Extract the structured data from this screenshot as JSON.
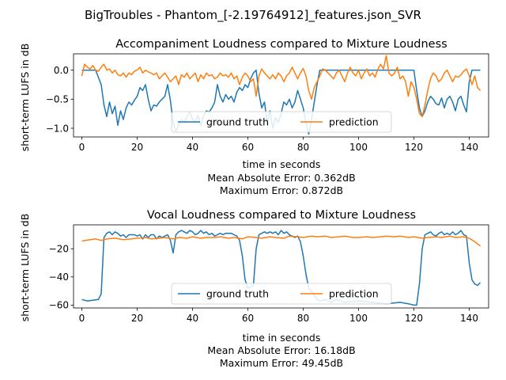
{
  "suptitle": "BigTroubles - Phantom_[-2.19764912]_features.json_SVR",
  "colors": {
    "ground_truth": "#1f77b4",
    "prediction": "#ff7f0e",
    "axis": "#000000"
  },
  "chart_data": [
    {
      "type": "line",
      "title": "Accompaniment Loudness compared to Mixture Loudness",
      "xlabel": "time in seconds",
      "ylabel": "short-term LUFS in dB",
      "xlim": [
        -3,
        147
      ],
      "ylim": [
        -1.15,
        0.28
      ],
      "xticks": [
        0,
        20,
        40,
        60,
        80,
        100,
        120,
        140
      ],
      "yticks": [
        0.0,
        -0.5,
        -1.0
      ],
      "ytick_labels": [
        "0.0",
        "−0.5",
        "−1.0"
      ],
      "legend": {
        "position": "lower-center",
        "columns": 2,
        "entries": [
          "ground truth",
          "prediction"
        ]
      },
      "stats": [
        "Mean Absolute Error: 0.362dB",
        "Maximum Error: 0.872dB"
      ],
      "series": [
        {
          "name": "ground truth",
          "x": [
            0,
            5,
            7,
            8,
            9,
            10,
            11,
            12,
            13,
            14,
            15,
            16,
            17,
            18,
            19,
            20,
            21,
            22,
            23,
            24,
            25,
            26,
            27,
            28,
            29,
            30,
            31,
            32,
            33,
            34,
            35,
            36,
            37,
            38,
            39,
            40,
            41,
            42,
            43,
            44,
            45,
            46,
            47,
            48,
            49,
            50,
            51,
            52,
            53,
            54,
            55,
            56,
            57,
            58,
            59,
            60,
            61,
            62,
            63,
            64,
            65,
            66,
            67,
            68,
            69,
            70,
            71,
            72,
            73,
            74,
            75,
            76,
            77,
            78,
            79,
            80,
            81,
            82,
            83,
            84,
            85,
            86,
            120,
            121,
            122,
            123,
            124,
            125,
            126,
            127,
            128,
            129,
            130,
            131,
            132,
            133,
            134,
            135,
            136,
            137,
            138,
            139,
            140,
            141,
            144
          ],
          "y": [
            0.0,
            0.0,
            -0.25,
            -0.6,
            -0.8,
            -0.55,
            -0.75,
            -0.62,
            -0.95,
            -0.7,
            -0.85,
            -0.65,
            -0.55,
            -0.6,
            -0.52,
            -0.45,
            -0.3,
            -0.35,
            -0.25,
            -0.5,
            -0.7,
            -0.6,
            -0.62,
            -0.55,
            -0.5,
            -0.45,
            -0.25,
            -0.52,
            -0.9,
            -1.05,
            -0.95,
            -0.85,
            -0.9,
            -0.8,
            -0.72,
            -0.85,
            -0.9,
            -0.78,
            -0.95,
            -0.78,
            -0.7,
            -0.72,
            -0.65,
            -0.55,
            -0.25,
            -0.45,
            -0.55,
            -0.42,
            -0.5,
            -0.45,
            -0.55,
            -0.38,
            -0.3,
            -0.35,
            -0.25,
            -0.3,
            -0.15,
            -0.05,
            0.0,
            -0.4,
            -0.65,
            -0.55,
            -0.9,
            -0.7,
            -1.0,
            -0.82,
            -0.9,
            -0.75,
            -0.55,
            -0.6,
            -0.5,
            -0.65,
            -0.55,
            -0.35,
            -0.5,
            -0.65,
            -0.9,
            -1.1,
            -0.85,
            -0.55,
            -0.25,
            0.0,
            0.0,
            -0.35,
            -0.65,
            -0.8,
            -0.7,
            -0.55,
            -0.45,
            -0.5,
            -0.58,
            -0.6,
            -0.48,
            -0.65,
            -0.5,
            -0.45,
            -0.55,
            -0.7,
            -0.5,
            -0.45,
            -0.6,
            -0.72,
            -0.2,
            0.0,
            0.0
          ]
        },
        {
          "name": "prediction",
          "x": [
            0,
            1,
            2,
            3,
            4,
            5,
            6,
            7,
            8,
            9,
            10,
            11,
            12,
            13,
            14,
            15,
            16,
            17,
            18,
            19,
            20,
            21,
            22,
            23,
            24,
            25,
            26,
            27,
            28,
            29,
            30,
            31,
            32,
            33,
            34,
            35,
            36,
            37,
            38,
            39,
            40,
            41,
            42,
            43,
            44,
            45,
            46,
            47,
            48,
            49,
            50,
            51,
            52,
            53,
            54,
            55,
            56,
            57,
            58,
            59,
            60,
            61,
            62,
            63,
            64,
            65,
            66,
            67,
            68,
            69,
            70,
            71,
            72,
            73,
            74,
            75,
            76,
            77,
            78,
            79,
            80,
            81,
            82,
            83,
            84,
            85,
            86,
            87,
            88,
            89,
            90,
            91,
            92,
            93,
            94,
            95,
            96,
            97,
            98,
            99,
            100,
            101,
            102,
            103,
            104,
            105,
            106,
            107,
            108,
            109,
            110,
            111,
            112,
            113,
            114,
            115,
            116,
            117,
            118,
            119,
            120,
            121,
            122,
            123,
            124,
            125,
            126,
            127,
            128,
            129,
            130,
            131,
            132,
            133,
            134,
            135,
            136,
            137,
            138,
            139,
            140,
            141,
            142,
            143,
            144
          ],
          "y": [
            -0.1,
            0.1,
            0.05,
            0.02,
            0.08,
            0.0,
            -0.02,
            0.05,
            0.1,
            0.0,
            0.02,
            -0.05,
            0.0,
            -0.08,
            -0.1,
            -0.05,
            -0.12,
            -0.05,
            -0.08,
            -0.02,
            0.0,
            0.05,
            -0.05,
            0.0,
            -0.03,
            -0.05,
            -0.08,
            -0.05,
            -0.15,
            -0.1,
            -0.05,
            -0.12,
            -0.2,
            -0.15,
            -0.1,
            -0.25,
            -0.08,
            -0.12,
            -0.05,
            -0.15,
            -0.1,
            -0.05,
            -0.2,
            -0.08,
            -0.15,
            -0.05,
            -0.1,
            -0.08,
            -0.15,
            -0.12,
            -0.05,
            -0.1,
            -0.08,
            -0.12,
            -0.05,
            -0.15,
            -0.1,
            -0.25,
            -0.12,
            -0.05,
            -0.1,
            -0.2,
            -0.15,
            -0.45,
            -0.1,
            0.02,
            -0.05,
            -0.1,
            -0.15,
            -0.08,
            -0.15,
            -0.05,
            -0.1,
            -0.2,
            -0.1,
            -0.05,
            0.05,
            -0.05,
            -0.15,
            -0.05,
            0.03,
            -0.1,
            -0.35,
            -0.5,
            -0.3,
            -0.2,
            -0.1,
            0.02,
            0.0,
            -0.05,
            -0.1,
            -0.15,
            -0.05,
            0.0,
            -0.1,
            -0.2,
            -0.05,
            0.05,
            -0.05,
            -0.1,
            0.0,
            -0.15,
            -0.05,
            0.02,
            -0.1,
            -0.05,
            -0.12,
            0.02,
            0.1,
            0.02,
            0.25,
            -0.05,
            -0.1,
            -0.05,
            0.05,
            -0.15,
            -0.1,
            -0.2,
            -0.45,
            -0.2,
            -0.3,
            -0.5,
            -0.75,
            -0.8,
            -0.6,
            -0.35,
            -0.15,
            -0.05,
            -0.1,
            -0.2,
            -0.15,
            -0.05,
            0.0,
            -0.1,
            -0.2,
            -0.1,
            -0.12,
            -0.08,
            -0.02,
            0.02,
            -0.1,
            -0.25,
            -0.1,
            -0.3,
            -0.35
          ]
        }
      ]
    },
    {
      "type": "line",
      "title": "Vocal Loudness compared to Mixture Loudness",
      "xlabel": "time in seconds",
      "ylabel": "short-term LUFS in dB",
      "xlim": [
        -3,
        147
      ],
      "ylim": [
        -62,
        -3
      ],
      "xticks": [
        0,
        20,
        40,
        60,
        80,
        100,
        120,
        140
      ],
      "yticks": [
        -20,
        -40,
        -60
      ],
      "ytick_labels": [
        "−20",
        "−40",
        "−60"
      ],
      "legend": {
        "position": "lower-center",
        "columns": 2,
        "entries": [
          "ground truth",
          "prediction"
        ]
      },
      "stats": [
        "Mean Absolute Error: 16.18dB",
        "Maximum Error: 49.45dB"
      ],
      "series": [
        {
          "name": "ground truth",
          "x": [
            0,
            2,
            4,
            6,
            7,
            8,
            9,
            10,
            11,
            12,
            13,
            14,
            15,
            16,
            17,
            18,
            19,
            20,
            21,
            22,
            23,
            24,
            25,
            26,
            27,
            28,
            29,
            30,
            31,
            32,
            33,
            34,
            35,
            36,
            37,
            38,
            39,
            40,
            41,
            42,
            43,
            44,
            45,
            46,
            47,
            48,
            49,
            50,
            51,
            52,
            53,
            54,
            55,
            56,
            57,
            58,
            59,
            60,
            61,
            62,
            63,
            64,
            65,
            66,
            67,
            68,
            69,
            70,
            71,
            72,
            73,
            74,
            75,
            76,
            77,
            78,
            79,
            80,
            81,
            82,
            83,
            84,
            85,
            86,
            88,
            90,
            92,
            95,
            100,
            105,
            110,
            115,
            118,
            120,
            121,
            122,
            123,
            124,
            125,
            126,
            127,
            128,
            129,
            130,
            131,
            132,
            133,
            134,
            135,
            136,
            137,
            138,
            139,
            140,
            141,
            142,
            143,
            144
          ],
          "y": [
            -56,
            -57,
            -56.5,
            -56,
            -52,
            -12,
            -9,
            -8,
            -10,
            -8,
            -9,
            -11,
            -10,
            -12,
            -10,
            -10,
            -10,
            -11,
            -10,
            -13,
            -10,
            -12,
            -10,
            -10,
            -13,
            -11,
            -12,
            -11,
            -10,
            -14,
            -23,
            -10,
            -8,
            -7,
            -8,
            -9,
            -7,
            -8,
            -10,
            -9,
            -7,
            -9,
            -8,
            -10,
            -9,
            -11,
            -10,
            -9,
            -10,
            -9,
            -9,
            -9,
            -10,
            -11,
            -14,
            -25,
            -42,
            -48,
            -47,
            -46,
            -20,
            -10,
            -9,
            -8,
            -9,
            -8,
            -9,
            -8,
            -10,
            -7,
            -9,
            -8,
            -10,
            -11,
            -12,
            -11,
            -15,
            -25,
            -38,
            -48,
            -50,
            -53,
            -56,
            -57,
            -56,
            -58,
            -56,
            -58,
            -57,
            -58,
            -59,
            -58,
            -59,
            -60,
            -60,
            -45,
            -20,
            -10,
            -9,
            -8,
            -10,
            -11,
            -9,
            -8,
            -10,
            -9,
            -10,
            -8,
            -10,
            -9,
            -7,
            -10,
            -11,
            -30,
            -42,
            -45,
            -46,
            -44
          ]
        },
        {
          "name": "prediction",
          "x": [
            0,
            3,
            5,
            7,
            9,
            12,
            15,
            18,
            20,
            23,
            25,
            28,
            30,
            33,
            35,
            38,
            40,
            43,
            45,
            48,
            50,
            53,
            55,
            58,
            60,
            63,
            65,
            68,
            70,
            73,
            75,
            78,
            80,
            83,
            85,
            88,
            90,
            93,
            95,
            98,
            100,
            103,
            105,
            108,
            110,
            113,
            115,
            118,
            120,
            123,
            125,
            128,
            130,
            133,
            135,
            138,
            140,
            142,
            144
          ],
          "y": [
            -14.5,
            -13.5,
            -13,
            -14,
            -13,
            -12.5,
            -13.5,
            -13,
            -12.5,
            -12,
            -13,
            -12.5,
            -12,
            -13,
            -12,
            -12.5,
            -11.5,
            -12.5,
            -12,
            -12,
            -11.5,
            -12.5,
            -12,
            -13,
            -11.5,
            -12,
            -12.5,
            -11.5,
            -12,
            -12.5,
            -11,
            -11.5,
            -12,
            -11,
            -11.5,
            -11,
            -12,
            -11.5,
            -11,
            -12,
            -12,
            -11.5,
            -12,
            -11.5,
            -11,
            -11.5,
            -11,
            -12,
            -11.5,
            -12.5,
            -12,
            -11.5,
            -12,
            -11,
            -12,
            -11.5,
            -12.5,
            -15,
            -18
          ]
        }
      ]
    }
  ]
}
